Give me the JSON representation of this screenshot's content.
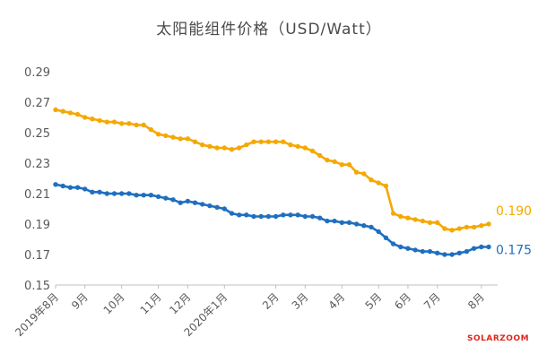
{
  "chart_data": {
    "type": "line",
    "title": "太阳能组件价格（USD/Watt）",
    "ylim": [
      0.15,
      0.29
    ],
    "yticks": [
      "0.15",
      "0.17",
      "0.19",
      "0.21",
      "0.23",
      "0.25",
      "0.27",
      "0.29"
    ],
    "x_tick_labels": [
      "2019年8月",
      "9月",
      "10月",
      "11月",
      "12月",
      "2020年1月",
      "2月",
      "3月",
      "4月",
      "5月",
      "6月",
      "7月",
      "8月"
    ],
    "x_tick_indices": [
      0,
      4,
      9,
      14,
      18,
      23,
      30,
      34,
      39,
      44,
      48,
      52,
      58
    ],
    "grid": false,
    "legend": "none",
    "series": [
      {
        "color": "#f5a800",
        "end_label": "0.190",
        "values": [
          0.265,
          0.264,
          0.263,
          0.262,
          0.26,
          0.259,
          0.258,
          0.257,
          0.257,
          0.256,
          0.256,
          0.255,
          0.255,
          0.252,
          0.249,
          0.248,
          0.247,
          0.246,
          0.246,
          0.244,
          0.242,
          0.241,
          0.24,
          0.24,
          0.239,
          0.24,
          0.242,
          0.244,
          0.244,
          0.244,
          0.244,
          0.244,
          0.242,
          0.241,
          0.24,
          0.238,
          0.235,
          0.232,
          0.231,
          0.229,
          0.229,
          0.224,
          0.223,
          0.219,
          0.217,
          0.215,
          0.197,
          0.195,
          0.194,
          0.193,
          0.192,
          0.191,
          0.191,
          0.187,
          0.186,
          0.187,
          0.188,
          0.188,
          0.189,
          0.19
        ]
      },
      {
        "color": "#1f6fc0",
        "end_label": "0.175",
        "values": [
          0.216,
          0.215,
          0.214,
          0.214,
          0.213,
          0.211,
          0.211,
          0.21,
          0.21,
          0.21,
          0.21,
          0.209,
          0.209,
          0.209,
          0.208,
          0.207,
          0.206,
          0.204,
          0.205,
          0.204,
          0.203,
          0.202,
          0.201,
          0.2,
          0.197,
          0.196,
          0.196,
          0.195,
          0.195,
          0.195,
          0.195,
          0.196,
          0.196,
          0.196,
          0.195,
          0.195,
          0.194,
          0.192,
          0.192,
          0.191,
          0.191,
          0.19,
          0.189,
          0.188,
          0.185,
          0.181,
          0.177,
          0.175,
          0.174,
          0.173,
          0.172,
          0.172,
          0.171,
          0.17,
          0.17,
          0.171,
          0.172,
          0.174,
          0.175,
          0.175
        ]
      }
    ]
  },
  "watermark": "SOLARZOOM"
}
